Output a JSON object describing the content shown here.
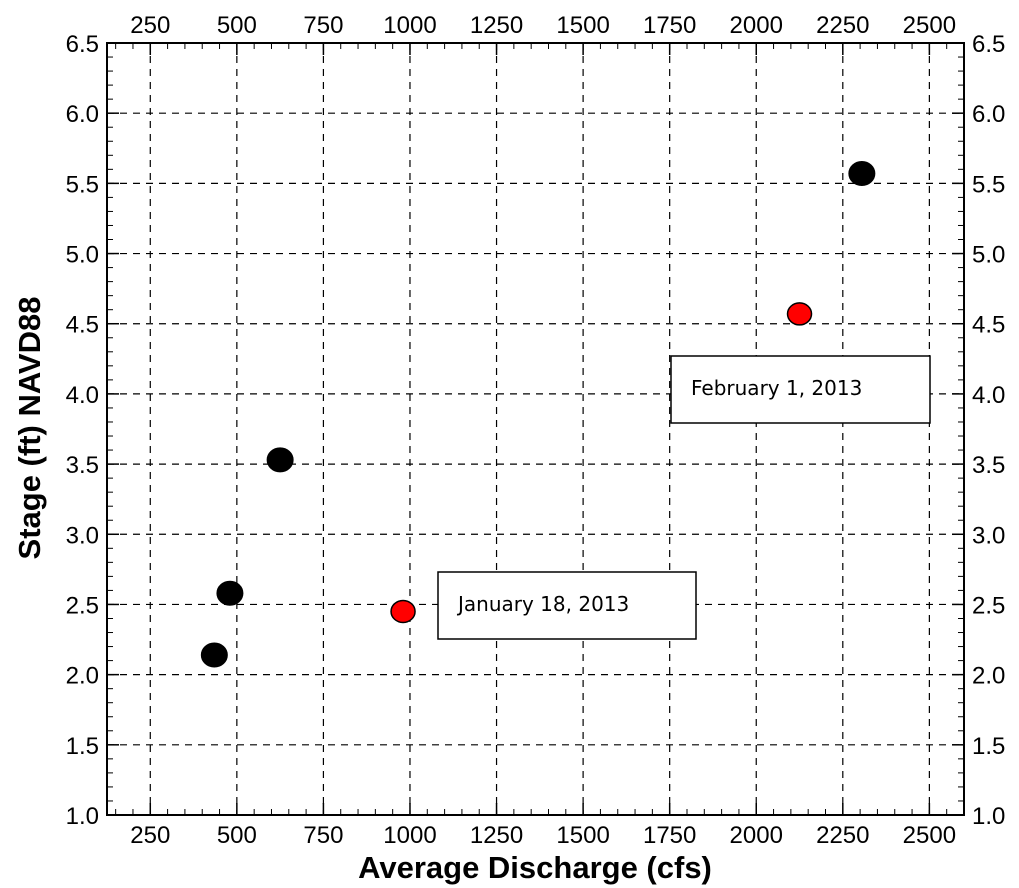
{
  "chart_data": {
    "type": "scatter",
    "title": "",
    "xlabel": "Average Discharge (cfs)",
    "ylabel": "Stage  (ft) NAVD88",
    "xlim": [
      125,
      2600
    ],
    "ylim": [
      1.0,
      6.5
    ],
    "x_ticks": [
      250,
      500,
      750,
      1000,
      1250,
      1500,
      1750,
      2000,
      2250,
      2500
    ],
    "x_tick_labels": [
      "250",
      "500",
      "750",
      "1000",
      "1250",
      "1500",
      "1750",
      "2000",
      "2250",
      "2500"
    ],
    "y_ticks": [
      1.0,
      1.5,
      2.0,
      2.5,
      3.0,
      3.5,
      4.0,
      4.5,
      5.0,
      5.5,
      6.0,
      6.5
    ],
    "y_tick_labels": [
      "1.0",
      "1.5",
      "2.0",
      "2.5",
      "3.0",
      "3.5",
      "4.0",
      "4.5",
      "5.0",
      "5.5",
      "6.0",
      "6.5"
    ],
    "grid": true,
    "series": [
      {
        "color": "#000000",
        "points": [
          {
            "x": 435,
            "y": 2.14
          },
          {
            "x": 480,
            "y": 2.58
          },
          {
            "x": 625,
            "y": 3.53
          },
          {
            "x": 2305,
            "y": 5.57
          }
        ]
      },
      {
        "color": "#ff0000",
        "points": [
          {
            "x": 980,
            "y": 2.45
          },
          {
            "x": 2125,
            "y": 4.57
          }
        ]
      }
    ],
    "annotations": [
      {
        "text": "January 18, 2013"
      },
      {
        "text": "February 1, 2013"
      }
    ]
  }
}
